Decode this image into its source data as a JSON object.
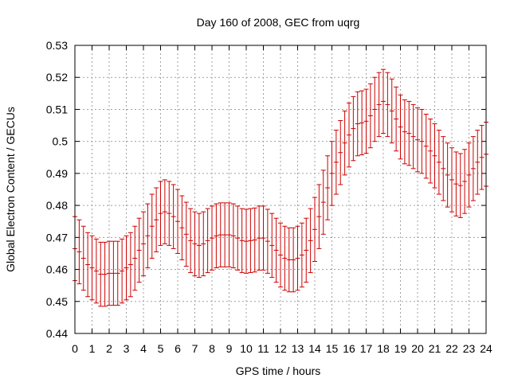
{
  "chart_data": {
    "type": "scatter",
    "title": "Day 160 of 2008, GEC from uqrg",
    "xlabel": "GPS time / hours",
    "ylabel": "Global Electron Content / GECUs",
    "xlim": [
      0,
      24
    ],
    "ylim": [
      0.44,
      0.53
    ],
    "grid": true,
    "x_ticks": [
      "0",
      "1",
      "2",
      "3",
      "4",
      "5",
      "6",
      "7",
      "8",
      "9",
      "10",
      "11",
      "12",
      "13",
      "14",
      "15",
      "16",
      "17",
      "18",
      "19",
      "20",
      "21",
      "22",
      "23",
      "24"
    ],
    "y_ticks": [
      "0.44",
      "0.45",
      "0.46",
      "0.47",
      "0.48",
      "0.49",
      "0.5",
      "0.51",
      "0.52",
      "0.53"
    ],
    "series": [
      {
        "name": "GEC",
        "color": "#cc0000",
        "error": 0.01,
        "x": [
          0,
          0.25,
          0.5,
          0.75,
          1,
          1.25,
          1.5,
          1.75,
          2,
          2.25,
          2.5,
          2.75,
          3,
          3.25,
          3.5,
          3.75,
          4,
          4.25,
          4.5,
          4.75,
          5,
          5.25,
          5.5,
          5.75,
          6,
          6.25,
          6.5,
          6.75,
          7,
          7.25,
          7.5,
          7.75,
          8,
          8.25,
          8.5,
          8.75,
          9,
          9.25,
          9.5,
          9.75,
          10,
          10.25,
          10.5,
          10.75,
          11,
          11.25,
          11.5,
          11.75,
          12,
          12.25,
          12.5,
          12.75,
          13,
          13.25,
          13.5,
          13.75,
          14,
          14.25,
          14.5,
          14.75,
          15,
          15.25,
          15.5,
          15.75,
          16,
          16.25,
          16.5,
          16.75,
          17,
          17.25,
          17.5,
          17.75,
          18,
          18.25,
          18.5,
          18.75,
          19,
          19.25,
          19.5,
          19.75,
          20,
          20.25,
          20.5,
          20.75,
          21,
          21.25,
          21.5,
          21.75,
          22,
          22.25,
          22.5,
          22.75,
          23,
          23.25,
          23.5,
          23.75,
          24
        ],
        "y": [
          0.4665,
          0.4655,
          0.4635,
          0.4615,
          0.4605,
          0.4595,
          0.4585,
          0.4585,
          0.4588,
          0.4588,
          0.4588,
          0.4595,
          0.4605,
          0.4615,
          0.4635,
          0.466,
          0.468,
          0.4705,
          0.4735,
          0.4755,
          0.4775,
          0.478,
          0.4775,
          0.4765,
          0.475,
          0.473,
          0.471,
          0.469,
          0.468,
          0.4675,
          0.468,
          0.469,
          0.4698,
          0.4705,
          0.4708,
          0.4708,
          0.4708,
          0.4705,
          0.4698,
          0.469,
          0.4688,
          0.469,
          0.4692,
          0.4698,
          0.4698,
          0.4688,
          0.4675,
          0.466,
          0.4645,
          0.4635,
          0.463,
          0.463,
          0.4635,
          0.4645,
          0.466,
          0.469,
          0.4725,
          0.4765,
          0.481,
          0.4855,
          0.49,
          0.4935,
          0.4965,
          0.4995,
          0.502,
          0.504,
          0.5055,
          0.5058,
          0.5063,
          0.508,
          0.51,
          0.5115,
          0.5125,
          0.5115,
          0.5095,
          0.507,
          0.5045,
          0.503,
          0.5025,
          0.5015,
          0.5005,
          0.5,
          0.4985,
          0.497,
          0.4955,
          0.4935,
          0.4915,
          0.4895,
          0.488,
          0.4867,
          0.4862,
          0.4875,
          0.4895,
          0.4915,
          0.4935,
          0.495,
          0.496
        ]
      }
    ]
  }
}
